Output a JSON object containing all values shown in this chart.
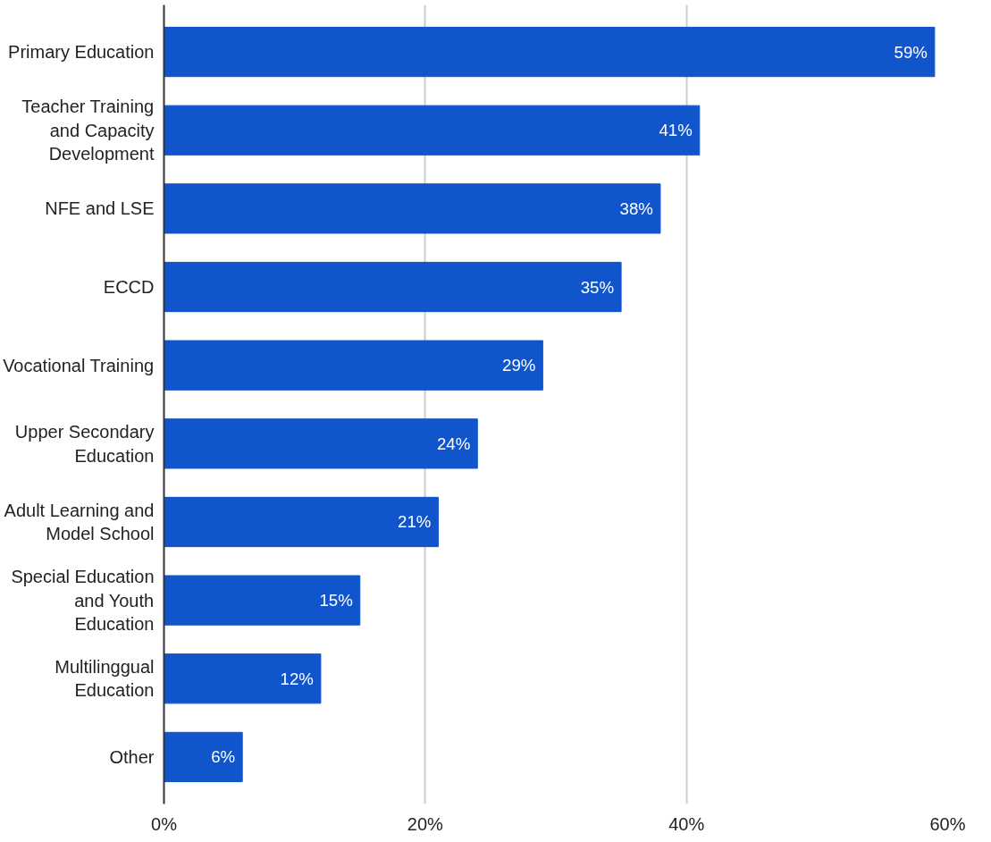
{
  "chart_data": {
    "type": "bar",
    "orientation": "horizontal",
    "categories": [
      "Primary Education",
      "Teacher Training\nand Capacity\nDevelopment",
      "NFE and LSE",
      "ECCD",
      "Vocational Training",
      "Upper Secondary\nEducation",
      "Adult Learning and\nModel School",
      "Special Education\nand Youth\nEducation",
      "Multilinggual\nEducation",
      "Other"
    ],
    "values": [
      59,
      41,
      38,
      35,
      29,
      24,
      21,
      15,
      12,
      6
    ],
    "color": "#1155cc",
    "xlim": [
      0,
      60
    ],
    "xticks": [
      {
        "value": 0,
        "label": "0%"
      },
      {
        "value": 20,
        "label": "20%"
      },
      {
        "value": 40,
        "label": "40%"
      },
      {
        "value": 60,
        "label": "60%"
      }
    ],
    "value_labels": [
      "59%",
      "41%",
      "38%",
      "35%",
      "29%",
      "24%",
      "21%",
      "15%",
      "12%",
      "6%"
    ],
    "grid": "x"
  }
}
